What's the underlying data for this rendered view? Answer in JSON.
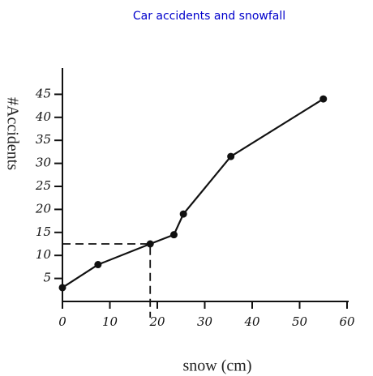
{
  "chart_data": {
    "type": "line",
    "title": "Car accidents and snowfall",
    "x_label": "snow (cm)",
    "y_label": "#Accidents",
    "x": [
      0,
      7.5,
      18.5,
      23.5,
      25.5,
      35.5,
      55
    ],
    "values": [
      3,
      8,
      12.5,
      14.5,
      19,
      31.5,
      44
    ],
    "color": "#111111",
    "xlim": [
      0,
      60
    ],
    "xticks": [
      0,
      10,
      20,
      30,
      40,
      50,
      60
    ],
    "ylim": [
      0,
      50
    ],
    "yticks": [
      5,
      10,
      15,
      20,
      25,
      30,
      35,
      40,
      45
    ],
    "grid": false
  }
}
